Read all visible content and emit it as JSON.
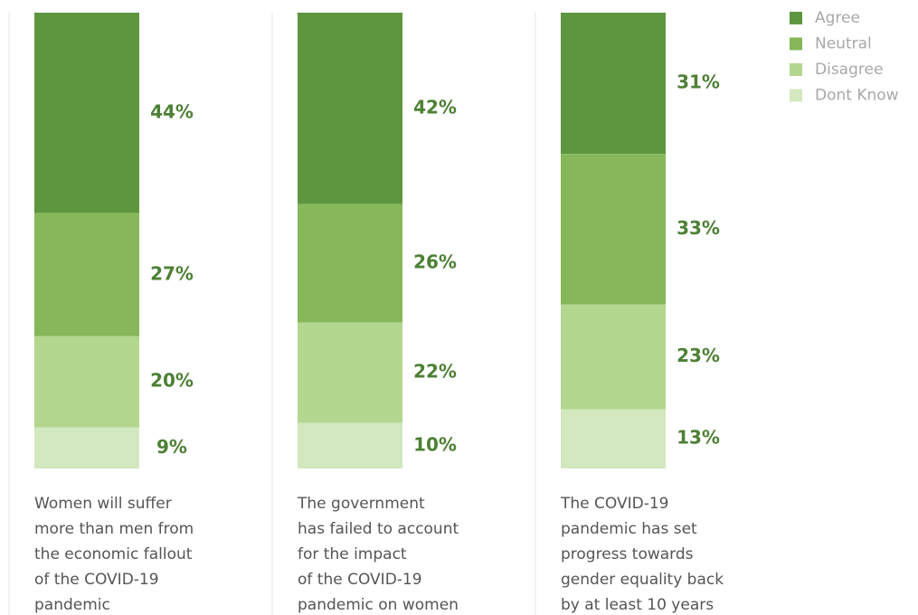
{
  "chart_data": {
    "type": "stacked_bar",
    "categories": [
      [
        "Women will suffer",
        "more than men from",
        "the economic fallout",
        "of the COVID-19",
        "pandemic"
      ],
      [
        "The government",
        "has failed to account",
        "for the impact",
        "of the COVID-19",
        "pandemic on women"
      ],
      [
        "The COVID-19",
        "pandemic has set",
        "progress towards",
        "gender equality back",
        "by at least 10 years"
      ]
    ],
    "series": [
      {
        "name": "Agree",
        "color": "#5e9640",
        "values": [
          44,
          42,
          31
        ],
        "value_labels": [
          "44%",
          "42%",
          "31%"
        ]
      },
      {
        "name": "Neutral",
        "color": "#86b85a",
        "values": [
          27,
          26,
          33
        ],
        "value_labels": [
          "27%",
          "26%",
          "33%"
        ]
      },
      {
        "name": "Disagree",
        "color": "#b3d78f",
        "values": [
          20,
          22,
          23
        ],
        "value_labels": [
          "20%",
          "22%",
          "23%"
        ]
      },
      {
        "name": "Dont Know",
        "color": "#d4e8bf",
        "values": [
          9,
          10,
          13
        ],
        "value_labels": [
          "9%",
          "10%",
          "13%"
        ]
      }
    ],
    "legend": "top-right"
  }
}
